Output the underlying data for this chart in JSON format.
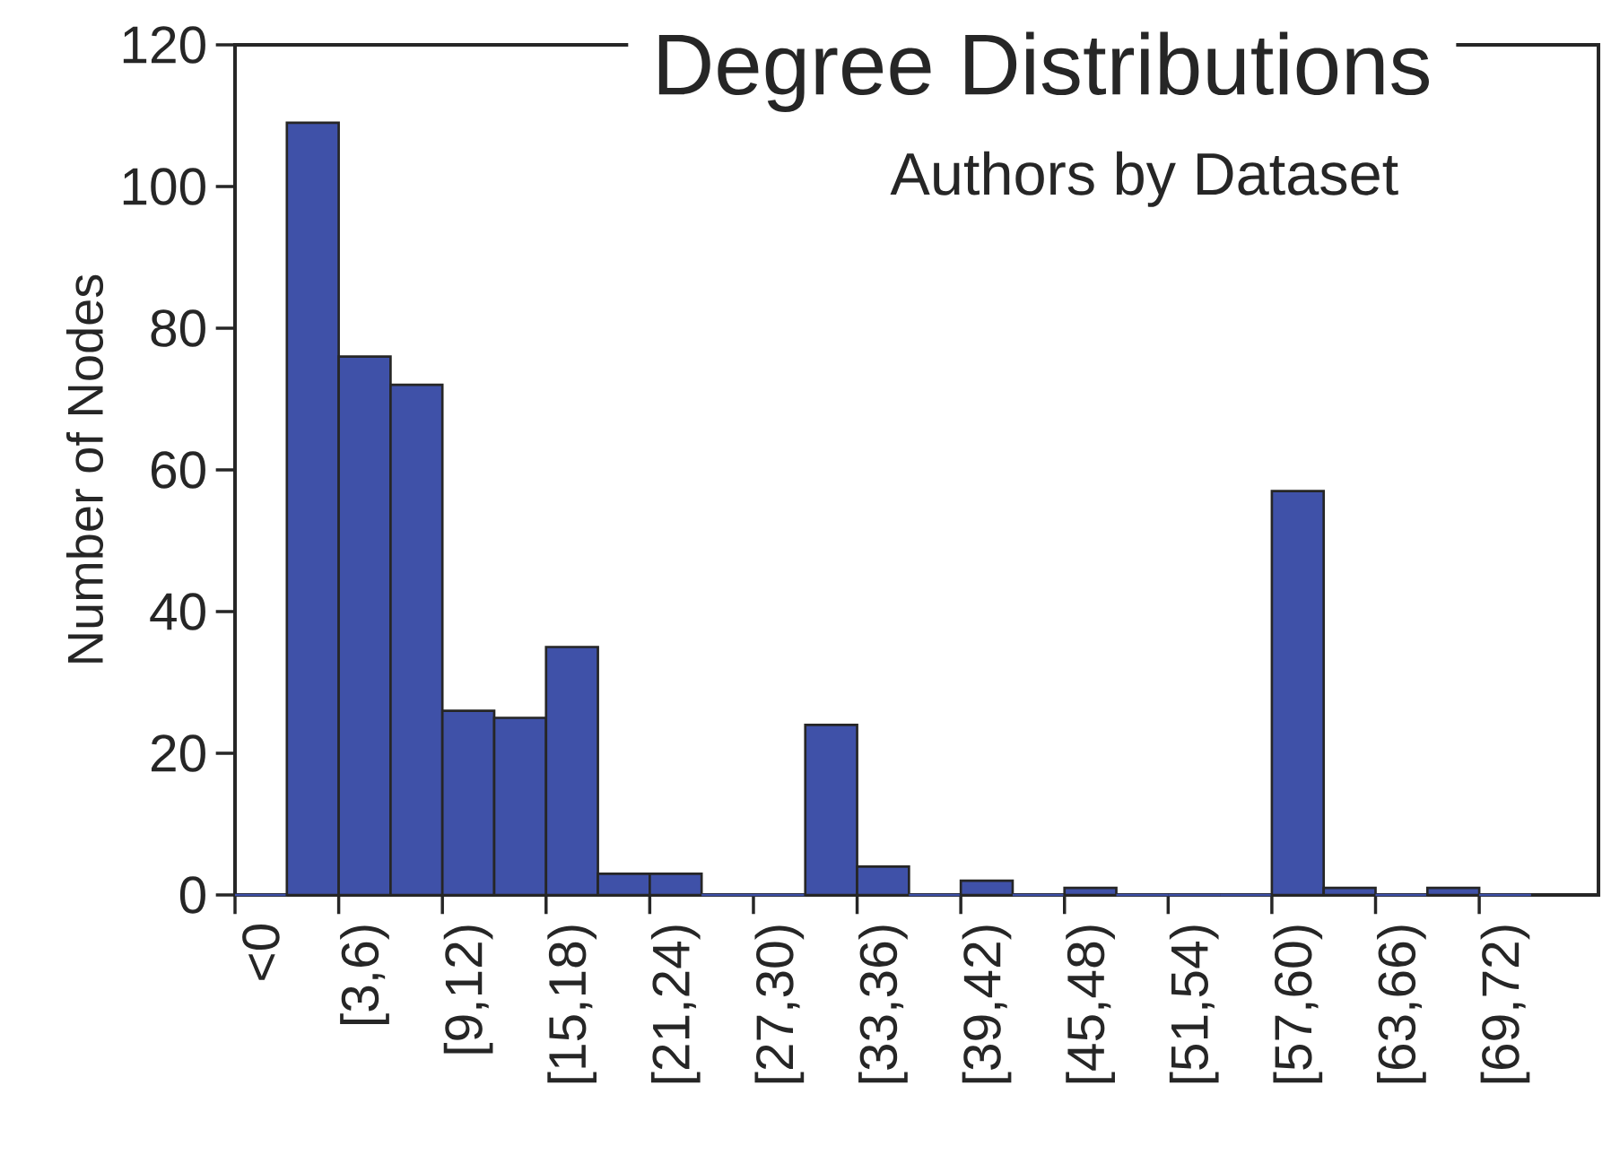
{
  "chart_data": {
    "type": "bar",
    "title": "Degree Distributions",
    "subtitle": "Authors by Dataset",
    "ylabel": "Number of Nodes",
    "categories": [
      "<0",
      null,
      "[3,6)",
      null,
      "[9,12)",
      null,
      "[15,18)",
      null,
      "[21,24)",
      null,
      "[27,30)",
      null,
      "[33,36)",
      null,
      "[39,42)",
      null,
      "[45,48)",
      null,
      "[51,54)",
      null,
      "[57,60)",
      null,
      "[63,66)",
      null,
      "[69,72)"
    ],
    "values": [
      0,
      109,
      76,
      72,
      26,
      25,
      35,
      3,
      3,
      0,
      0,
      24,
      4,
      0,
      2,
      0,
      1,
      0,
      0,
      0,
      57,
      1,
      0,
      1,
      0
    ],
    "color": "#3f51a8",
    "ylim": [
      0,
      120
    ],
    "yticks": [
      0,
      20,
      40,
      60,
      80,
      100,
      120
    ]
  }
}
